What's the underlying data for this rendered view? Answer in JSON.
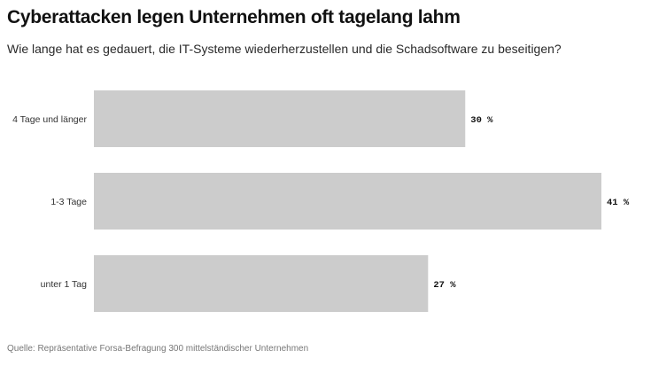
{
  "title": "Cyberattacken legen Unternehmen oft tagelang lahm",
  "subtitle": "Wie lange hat es gedauert, die IT-Systeme wiederherzustellen und die Schadsoftware zu beseitigen?",
  "source": "Quelle: Repräsentative Forsa-Befragung 300 mittelständischer Unternehmen",
  "chart_data": {
    "type": "bar",
    "orientation": "horizontal",
    "categories": [
      "4 Tage und länger",
      "1-3 Tage",
      "unter 1 Tag"
    ],
    "values": [
      30,
      41,
      27
    ],
    "value_labels": [
      "30 %",
      "41 %",
      "27 %"
    ],
    "unit": "%",
    "xlim": [
      0,
      41
    ],
    "grid": false,
    "bar_color": "#cccccc"
  }
}
